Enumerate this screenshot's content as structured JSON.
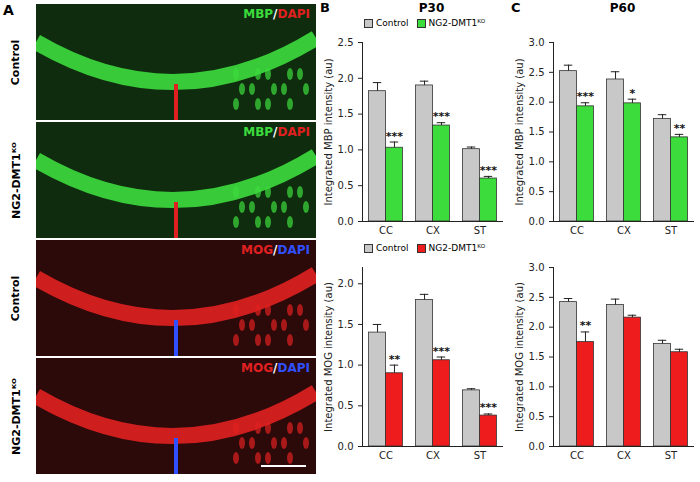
{
  "image_panel": {
    "panel": "A",
    "images": [
      {
        "condition": "Control",
        "stain": [
          "MBP",
          "/",
          "DAPI"
        ],
        "stain_colors": [
          "#3ddc3d",
          "#ffffff",
          "#e02020"
        ]
      },
      {
        "condition": "NG2-DMT1ᴷᴼ",
        "stain": [
          "MBP",
          "/",
          "DAPI"
        ],
        "stain_colors": [
          "#3ddc3d",
          "#ffffff",
          "#e02020"
        ]
      },
      {
        "condition": "Control",
        "stain": [
          "MOG",
          "/",
          "DAPI"
        ],
        "stain_colors": [
          "#e02020",
          "#ffffff",
          "#3050ff"
        ]
      },
      {
        "condition": "NG2-DMT1ᴷᴼ",
        "stain": [
          "MOG",
          "/",
          "DAPI"
        ],
        "stain_colors": [
          "#e02020",
          "#ffffff",
          "#3050ff"
        ]
      }
    ]
  },
  "chart_data": [
    {
      "type": "bar",
      "panel": "B",
      "title": "P30",
      "y_label": "Integrated MBP intensity (au)",
      "categories": [
        "CC",
        "CX",
        "ST"
      ],
      "series": [
        {
          "name": "Control",
          "color": "#c8c8c8",
          "values": [
            1.82,
            1.9,
            1.01
          ],
          "errors": [
            0.12,
            0.06,
            0.03
          ]
        },
        {
          "name": "NG2-DMT1ᴷᴼ",
          "color": "#3ddc3d",
          "values": [
            1.03,
            1.34,
            0.6
          ],
          "errors": [
            0.08,
            0.04,
            0.03
          ],
          "significance": [
            "***",
            "***",
            "***"
          ]
        }
      ],
      "ylim": [
        0,
        2.5
      ],
      "yticks": [
        {
          "value": 0,
          "label": "0.0"
        },
        0.5,
        {
          "value": 1,
          "label": "1.0"
        },
        1.5,
        {
          "value": 2,
          "label": "2.0"
        },
        2.5
      ],
      "legend": "top"
    },
    {
      "type": "bar",
      "y_label": "Integrated MOG intensity (au)",
      "categories": [
        "CC",
        "CX",
        "ST"
      ],
      "series": [
        {
          "name": "Control",
          "color": "#c8c8c8",
          "values": [
            1.4,
            1.8,
            0.69
          ],
          "errors": [
            0.1,
            0.07,
            0.02
          ]
        },
        {
          "name": "NG2-DMT1ᴷᴼ",
          "color": "#ee1c1c",
          "values": [
            0.9,
            1.06,
            0.38
          ],
          "errors": [
            0.1,
            0.04,
            0.02
          ],
          "significance": [
            "**",
            "***",
            "***"
          ]
        }
      ],
      "ylim": [
        0,
        2.2
      ],
      "yticks": [
        {
          "value": 0,
          "label": "0.0"
        },
        0.5,
        {
          "value": 1,
          "label": "1.0"
        },
        1.5,
        {
          "value": 2,
          "label": "2.0"
        }
      ],
      "legend": "top"
    },
    {
      "type": "bar",
      "panel": "C",
      "title": "P60",
      "y_label": "Integrated MBP intensity (au)",
      "categories": [
        "CC",
        "CX",
        "ST"
      ],
      "series": [
        {
          "name": "Control",
          "color": "#c8c8c8",
          "values": [
            2.52,
            2.38,
            1.72
          ],
          "errors": [
            0.1,
            0.13,
            0.07
          ]
        },
        {
          "name": "NG2-DMT1ᴷᴼ",
          "color": "#3ddc3d",
          "values": [
            1.93,
            1.98,
            1.41
          ],
          "errors": [
            0.06,
            0.07,
            0.05
          ],
          "significance": [
            "***",
            "*",
            "**"
          ]
        }
      ],
      "ylim": [
        0,
        3
      ],
      "yticks": [
        {
          "value": 0,
          "label": "0.0"
        },
        0.5,
        {
          "value": 1,
          "label": "1.0"
        },
        1.5,
        {
          "value": 2,
          "label": "2.0"
        },
        2.5,
        {
          "value": 3,
          "label": "3.0"
        }
      ]
    },
    {
      "type": "bar",
      "y_label": "Integrated MOG intensity (au)",
      "categories": [
        "CC",
        "CX",
        "ST"
      ],
      "series": [
        {
          "name": "Control",
          "color": "#c8c8c8",
          "values": [
            2.42,
            2.37,
            1.72
          ],
          "errors": [
            0.06,
            0.1,
            0.06
          ]
        },
        {
          "name": "NG2-DMT1ᴷᴼ",
          "color": "#ee1c1c",
          "values": [
            1.75,
            2.16,
            1.58
          ],
          "errors": [
            0.17,
            0.04,
            0.05
          ],
          "significance": [
            "**",
            null,
            null
          ]
        }
      ],
      "ylim": [
        0,
        3
      ],
      "yticks": [
        {
          "value": 0,
          "label": "0.0"
        },
        0.5,
        {
          "value": 1,
          "label": "1.0"
        },
        1.5,
        {
          "value": 2,
          "label": "2.0"
        },
        2.5,
        {
          "value": 3,
          "label": "3.0"
        }
      ]
    }
  ]
}
